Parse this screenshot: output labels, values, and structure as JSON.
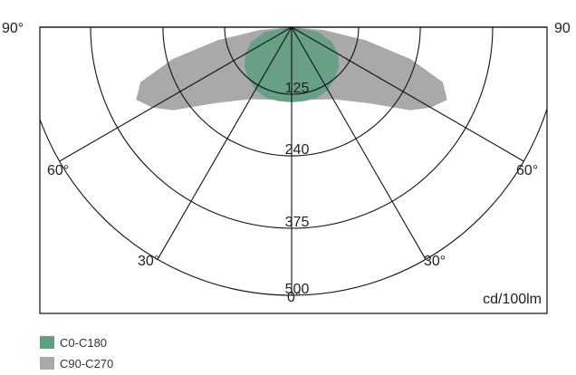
{
  "chart_data": {
    "type": "polar-photometric",
    "unit_label": "cd/100lm",
    "rings": [
      125,
      240,
      375,
      500
    ],
    "angle_labels": {
      "left_90": "90°",
      "right_90": "90",
      "left_60": "60°",
      "right_60": "60°",
      "left_30": "30°",
      "right_30": "30°",
      "bottom_0": "0°"
    },
    "rmax": 500,
    "colors": {
      "C0-C180": "#5f9e7f",
      "C90-C270": "#a9a9a9"
    },
    "series": [
      {
        "name": "C90-C270",
        "points": [
          {
            "angle": 0,
            "value": 140
          },
          {
            "angle": 15,
            "value": 140
          },
          {
            "angle": 30,
            "value": 155
          },
          {
            "angle": 45,
            "value": 200
          },
          {
            "angle": 55,
            "value": 270
          },
          {
            "angle": 60,
            "value": 300
          },
          {
            "angle": 65,
            "value": 320
          },
          {
            "angle": 70,
            "value": 300
          },
          {
            "angle": 75,
            "value": 230
          },
          {
            "angle": 80,
            "value": 140
          },
          {
            "angle": 85,
            "value": 60
          },
          {
            "angle": 90,
            "value": 0
          }
        ]
      },
      {
        "name": "C0-C180",
        "points": [
          {
            "angle": 0,
            "value": 140
          },
          {
            "angle": 10,
            "value": 140
          },
          {
            "angle": 20,
            "value": 140
          },
          {
            "angle": 30,
            "value": 135
          },
          {
            "angle": 40,
            "value": 125
          },
          {
            "angle": 50,
            "value": 115
          },
          {
            "angle": 60,
            "value": 100
          },
          {
            "angle": 70,
            "value": 80
          },
          {
            "angle": 80,
            "value": 50
          },
          {
            "angle": 90,
            "value": 0
          }
        ]
      }
    ]
  },
  "legend": [
    {
      "label": "C0-C180",
      "color": "#5f9e7f"
    },
    {
      "label": "C90-C270",
      "color": "#a9a9a9"
    }
  ]
}
